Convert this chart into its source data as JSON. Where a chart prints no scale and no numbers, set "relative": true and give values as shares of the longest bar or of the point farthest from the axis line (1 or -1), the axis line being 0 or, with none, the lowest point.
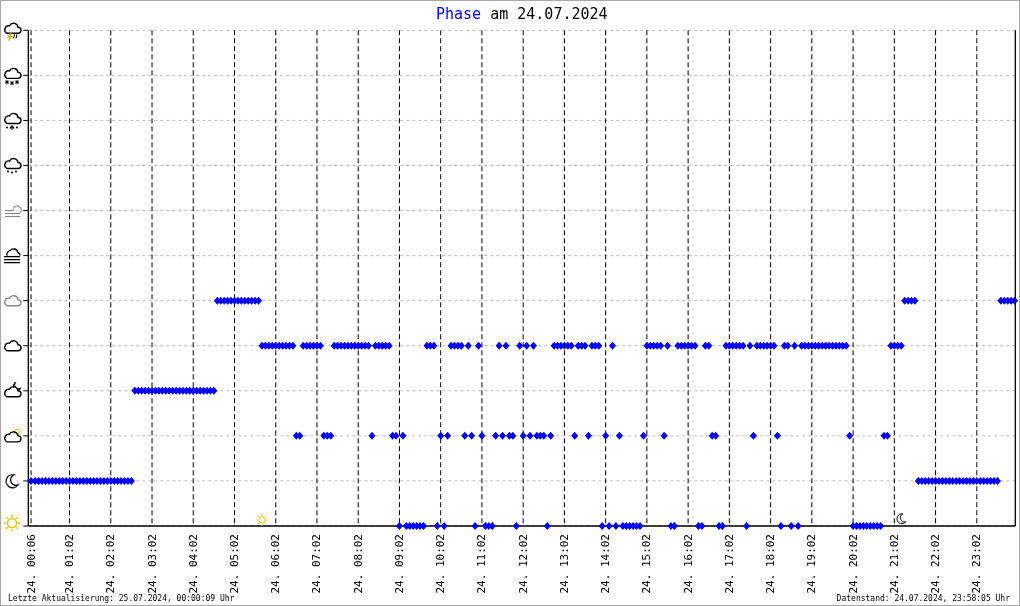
{
  "chart_data": {
    "type": "scatter",
    "title": "Phase am 24.07.2024",
    "relative": true,
    "color": "#0000ff",
    "marker": "diamond",
    "grid": true,
    "xlim": [
      "2024-07-24T00:02",
      "2024-07-24T23:58"
    ],
    "xticks": [
      {
        "value": "2024-07-24T00:06",
        "label": "24. 00:06"
      },
      {
        "value": "2024-07-24T01:02",
        "label": "24. 01:02"
      },
      {
        "value": "2024-07-24T02:02",
        "label": "24. 02:02"
      },
      {
        "value": "2024-07-24T03:02",
        "label": "24. 03:02"
      },
      {
        "value": "2024-07-24T04:02",
        "label": "24. 04:02"
      },
      {
        "value": "2024-07-24T05:02",
        "label": "24. 05:02"
      },
      {
        "value": "2024-07-24T06:02",
        "label": "24. 06:02"
      },
      {
        "value": "2024-07-24T07:02",
        "label": "24. 07:02"
      },
      {
        "value": "2024-07-24T08:02",
        "label": "24. 08:02"
      },
      {
        "value": "2024-07-24T09:02",
        "label": "24. 09:02"
      },
      {
        "value": "2024-07-24T10:02",
        "label": "24. 10:02"
      },
      {
        "value": "2024-07-24T11:02",
        "label": "24. 11:02"
      },
      {
        "value": "2024-07-24T12:02",
        "label": "24. 12:02"
      },
      {
        "value": "2024-07-24T13:02",
        "label": "24. 13:02"
      },
      {
        "value": "2024-07-24T14:02",
        "label": "24. 14:02"
      },
      {
        "value": "2024-07-24T15:02",
        "label": "24. 15:02"
      },
      {
        "value": "2024-07-24T16:02",
        "label": "24. 16:02"
      },
      {
        "value": "2024-07-24T17:02",
        "label": "24. 17:02"
      },
      {
        "value": "2024-07-24T18:02",
        "label": "24. 18:02"
      },
      {
        "value": "2024-07-24T19:02",
        "label": "24. 19:02"
      },
      {
        "value": "2024-07-24T20:02",
        "label": "24. 20:02"
      },
      {
        "value": "2024-07-24T21:02",
        "label": "24. 21:02"
      },
      {
        "value": "2024-07-24T22:02",
        "label": "24. 22:02"
      },
      {
        "value": "2024-07-24T23:02",
        "label": "24. 23:02"
      }
    ],
    "x": [
      "2024-07-24T00:06",
      "2024-07-24T00:12",
      "2024-07-24T00:17",
      "2024-07-24T00:22",
      "2024-07-24T00:27",
      "2024-07-24T00:32",
      "2024-07-24T00:37",
      "2024-07-24T00:42",
      "2024-07-24T00:47",
      "2024-07-24T00:52",
      "2024-07-24T00:57",
      "2024-07-24T01:02",
      "2024-07-24T01:07",
      "2024-07-24T01:12",
      "2024-07-24T01:17",
      "2024-07-24T01:22",
      "2024-07-24T01:27",
      "2024-07-24T01:32",
      "2024-07-24T01:37",
      "2024-07-24T01:42",
      "2024-07-24T01:47",
      "2024-07-24T01:52",
      "2024-07-24T01:57",
      "2024-07-24T02:02",
      "2024-07-24T02:07",
      "2024-07-24T02:12",
      "2024-07-24T02:17",
      "2024-07-24T02:22",
      "2024-07-24T02:27",
      "2024-07-24T02:32",
      "2024-07-24T02:37",
      "2024-07-24T02:42",
      "2024-07-24T02:47",
      "2024-07-24T02:52",
      "2024-07-24T02:57",
      "2024-07-24T03:02",
      "2024-07-24T03:07",
      "2024-07-24T03:12",
      "2024-07-24T03:17",
      "2024-07-24T03:22",
      "2024-07-24T03:27",
      "2024-07-24T03:32",
      "2024-07-24T03:37",
      "2024-07-24T03:42",
      "2024-07-24T03:47",
      "2024-07-24T03:52",
      "2024-07-24T03:57",
      "2024-07-24T04:02",
      "2024-07-24T04:07",
      "2024-07-24T04:12",
      "2024-07-24T04:17",
      "2024-07-24T04:22",
      "2024-07-24T04:27",
      "2024-07-24T04:32",
      "2024-07-24T04:37",
      "2024-07-24T04:42",
      "2024-07-24T04:47",
      "2024-07-24T04:52",
      "2024-07-24T04:57",
      "2024-07-24T05:02",
      "2024-07-24T05:07",
      "2024-07-24T05:12",
      "2024-07-24T05:17",
      "2024-07-24T05:22",
      "2024-07-24T05:27",
      "2024-07-24T05:32",
      "2024-07-24T05:37",
      "2024-07-24T05:42",
      "2024-07-24T05:47",
      "2024-07-24T05:52",
      "2024-07-24T05:57",
      "2024-07-24T06:02",
      "2024-07-24T06:07",
      "2024-07-24T06:12",
      "2024-07-24T06:17",
      "2024-07-24T06:22",
      "2024-07-24T06:27",
      "2024-07-24T06:32",
      "2024-07-24T06:37",
      "2024-07-24T06:42",
      "2024-07-24T06:47",
      "2024-07-24T06:52",
      "2024-07-24T06:57",
      "2024-07-24T07:02",
      "2024-07-24T07:07",
      "2024-07-24T07:12",
      "2024-07-24T07:17",
      "2024-07-24T07:22",
      "2024-07-24T07:27",
      "2024-07-24T07:32",
      "2024-07-24T07:37",
      "2024-07-24T07:42",
      "2024-07-24T07:47",
      "2024-07-24T07:52",
      "2024-07-24T07:57",
      "2024-07-24T08:02",
      "2024-07-24T08:07",
      "2024-07-24T08:12",
      "2024-07-24T08:17",
      "2024-07-24T08:22",
      "2024-07-24T08:27",
      "2024-07-24T08:32",
      "2024-07-24T08:37",
      "2024-07-24T08:42",
      "2024-07-24T08:47",
      "2024-07-24T08:52",
      "2024-07-24T08:57",
      "2024-07-24T09:02",
      "2024-07-24T09:07",
      "2024-07-24T09:12",
      "2024-07-24T09:17",
      "2024-07-24T09:22",
      "2024-07-24T09:27",
      "2024-07-24T09:32",
      "2024-07-24T09:37",
      "2024-07-24T09:42",
      "2024-07-24T09:47",
      "2024-07-24T09:52",
      "2024-07-24T09:57",
      "2024-07-24T10:02",
      "2024-07-24T10:07",
      "2024-07-24T10:12",
      "2024-07-24T10:17",
      "2024-07-24T10:22",
      "2024-07-24T10:27",
      "2024-07-24T10:32",
      "2024-07-24T10:37",
      "2024-07-24T10:42",
      "2024-07-24T10:47",
      "2024-07-24T10:52",
      "2024-07-24T10:57",
      "2024-07-24T11:02",
      "2024-07-24T11:07",
      "2024-07-24T11:12",
      "2024-07-24T11:17",
      "2024-07-24T11:22",
      "2024-07-24T11:27",
      "2024-07-24T11:32",
      "2024-07-24T11:37",
      "2024-07-24T11:42",
      "2024-07-24T11:47",
      "2024-07-24T11:52",
      "2024-07-24T11:57",
      "2024-07-24T12:02",
      "2024-07-24T12:07",
      "2024-07-24T12:12",
      "2024-07-24T12:17",
      "2024-07-24T12:22",
      "2024-07-24T12:27",
      "2024-07-24T12:32",
      "2024-07-24T12:37",
      "2024-07-24T12:42",
      "2024-07-24T12:47",
      "2024-07-24T12:52",
      "2024-07-24T12:57",
      "2024-07-24T13:02",
      "2024-07-24T13:07",
      "2024-07-24T13:12",
      "2024-07-24T13:17",
      "2024-07-24T13:22",
      "2024-07-24T13:27",
      "2024-07-24T13:32",
      "2024-07-24T13:37",
      "2024-07-24T13:42",
      "2024-07-24T13:47",
      "2024-07-24T13:52",
      "2024-07-24T13:57",
      "2024-07-24T14:02",
      "2024-07-24T14:07",
      "2024-07-24T14:12",
      "2024-07-24T14:17",
      "2024-07-24T14:22",
      "2024-07-24T14:27",
      "2024-07-24T14:32",
      "2024-07-24T14:37",
      "2024-07-24T14:42",
      "2024-07-24T14:47",
      "2024-07-24T14:52",
      "2024-07-24T14:57",
      "2024-07-24T15:02",
      "2024-07-24T15:07",
      "2024-07-24T15:12",
      "2024-07-24T15:17",
      "2024-07-24T15:22",
      "2024-07-24T15:27",
      "2024-07-24T15:32",
      "2024-07-24T15:37",
      "2024-07-24T15:42",
      "2024-07-24T15:47",
      "2024-07-24T15:52",
      "2024-07-24T15:57",
      "2024-07-24T16:02",
      "2024-07-24T16:07",
      "2024-07-24T16:12",
      "2024-07-24T16:17",
      "2024-07-24T16:22",
      "2024-07-24T16:27",
      "2024-07-24T16:32",
      "2024-07-24T16:37",
      "2024-07-24T16:42",
      "2024-07-24T16:47",
      "2024-07-24T16:52",
      "2024-07-24T16:57",
      "2024-07-24T17:02",
      "2024-07-24T17:07",
      "2024-07-24T17:12",
      "2024-07-24T17:17",
      "2024-07-24T17:22",
      "2024-07-24T17:27",
      "2024-07-24T17:32",
      "2024-07-24T17:37",
      "2024-07-24T17:42",
      "2024-07-24T17:47",
      "2024-07-24T17:52",
      "2024-07-24T17:57",
      "2024-07-24T18:02",
      "2024-07-24T18:07",
      "2024-07-24T18:12",
      "2024-07-24T18:17",
      "2024-07-24T18:22",
      "2024-07-24T18:27",
      "2024-07-24T18:32",
      "2024-07-24T18:37",
      "2024-07-24T18:42",
      "2024-07-24T18:47",
      "2024-07-24T18:52",
      "2024-07-24T18:57",
      "2024-07-24T19:02",
      "2024-07-24T19:07",
      "2024-07-24T19:12",
      "2024-07-24T19:17",
      "2024-07-24T19:22",
      "2024-07-24T19:27",
      "2024-07-24T19:32",
      "2024-07-24T19:37",
      "2024-07-24T19:42",
      "2024-07-24T19:47",
      "2024-07-24T19:52",
      "2024-07-24T19:57",
      "2024-07-24T20:02",
      "2024-07-24T20:07",
      "2024-07-24T20:12",
      "2024-07-24T20:17",
      "2024-07-24T20:22",
      "2024-07-24T20:27",
      "2024-07-24T20:32",
      "2024-07-24T20:37",
      "2024-07-24T20:42",
      "2024-07-24T20:47",
      "2024-07-24T20:52",
      "2024-07-24T20:57",
      "2024-07-24T21:02",
      "2024-07-24T21:07",
      "2024-07-24T21:12",
      "2024-07-24T21:17",
      "2024-07-24T21:22",
      "2024-07-24T21:27",
      "2024-07-24T21:32",
      "2024-07-24T21:37",
      "2024-07-24T21:42",
      "2024-07-24T21:47",
      "2024-07-24T21:52",
      "2024-07-24T21:57",
      "2024-07-24T22:02",
      "2024-07-24T22:07",
      "2024-07-24T22:12",
      "2024-07-24T22:17",
      "2024-07-24T22:22",
      "2024-07-24T22:27",
      "2024-07-24T22:32",
      "2024-07-24T22:37",
      "2024-07-24T22:42",
      "2024-07-24T22:47",
      "2024-07-24T22:52",
      "2024-07-24T22:57",
      "2024-07-24T23:02",
      "2024-07-24T23:07",
      "2024-07-24T23:12",
      "2024-07-24T23:17",
      "2024-07-24T23:22",
      "2024-07-24T23:27",
      "2024-07-24T23:32",
      "2024-07-24T23:37",
      "2024-07-24T23:42",
      "2024-07-24T23:47",
      "2024-07-24T23:52",
      "2024-07-24T23:57"
    ],
    "values": [
      0.2,
      0.2,
      0.2,
      0.2,
      0.2,
      0.2,
      0.2,
      0.2,
      0.2,
      0.2,
      0.2,
      0.2,
      0.2,
      0.2,
      0.2,
      0.2,
      0.2,
      0.2,
      0.2,
      0.2,
      0.2,
      0.2,
      0.2,
      0.2,
      0.2,
      0.2,
      0.2,
      0.2,
      0.2,
      0.2,
      0.6,
      0.6,
      0.6,
      0.6,
      0.6,
      0.6,
      0.6,
      0.6,
      0.6,
      0.6,
      0.6,
      0.6,
      0.6,
      0.6,
      0.6,
      0.6,
      0.6,
      0.6,
      0.6,
      0.6,
      0.6,
      0.6,
      0.6,
      0.6,
      1,
      1,
      1,
      1,
      1,
      1,
      1,
      1,
      1,
      1,
      1,
      1,
      1,
      0.8,
      0.8,
      0.8,
      0.8,
      0.8,
      0.8,
      0.8,
      0.8,
      0.8,
      0.8,
      0.4,
      0.4,
      0.8,
      0.8,
      0.8,
      0.8,
      0.8,
      0.8,
      0.4,
      0.4,
      0.4,
      0.8,
      0.8,
      0.8,
      0.8,
      0.8,
      0.8,
      0.8,
      0.8,
      0.8,
      0.8,
      0.8,
      0.4,
      0.8,
      0.8,
      0.8,
      0.8,
      0.8,
      0.4,
      0.4,
      0,
      0.4,
      0,
      0,
      0,
      0,
      0,
      0,
      0.8,
      0.8,
      0.8,
      0,
      0.4,
      0,
      0.4,
      0.8,
      0.8,
      0.8,
      0.8,
      0.4,
      0.8,
      0.4,
      0,
      0.8,
      0.4,
      0,
      0,
      0,
      0.4,
      0.8,
      0.4,
      0.8,
      0.4,
      0.4,
      0,
      0.8,
      0.4,
      0.8,
      0.4,
      0.8,
      0.4,
      0.4,
      0.4,
      0,
      0.4,
      0.8,
      0.8,
      0.8,
      0.8,
      0.8,
      0.8,
      0.4,
      0.8,
      0.8,
      0.8,
      0.4,
      0.8,
      0.8,
      0.8,
      0,
      0.4,
      0,
      0.8,
      0,
      0.4,
      0,
      0,
      0,
      0,
      0,
      0,
      0.4,
      0.8,
      0.8,
      0.8,
      0.8,
      0.8,
      0.4,
      0.8,
      0,
      0,
      0.8,
      0.8,
      0.8,
      0.8,
      0.8,
      0.8,
      0,
      0,
      0.8,
      0.8,
      0.4,
      0.4,
      0,
      0,
      0.8,
      0.8,
      0.8,
      0.8,
      0.8,
      0.8,
      0,
      0.8,
      0.4,
      0.8,
      0.8,
      0.8,
      0.8,
      0.8,
      0.8,
      0.4,
      0,
      0.8,
      0.8,
      0,
      0.8,
      0,
      0.8,
      0.8,
      0.8,
      0.8,
      0.8,
      0.8,
      0.8,
      0.8,
      0.8,
      0.8,
      0.8,
      0.8,
      0.8,
      0.8,
      0.4,
      0,
      0,
      0,
      0,
      0,
      0,
      0,
      0,
      0,
      0.4,
      0.4,
      0.8,
      0.8,
      0.8,
      0.8,
      1,
      1,
      1,
      1,
      0.2,
      0.2,
      0.2,
      0.2,
      0.2,
      0.2,
      0.2,
      0.2,
      0.2,
      0.2,
      0.2,
      0.2,
      0.2,
      0.2,
      0.2,
      0.2,
      0.2,
      0.2,
      0.2,
      0.2,
      0.2,
      0.2,
      0.2,
      0.2,
      1,
      1,
      1,
      1,
      1
    ],
    "annotations": [
      "Letzte Aktualisierung: 25.07.2024, 00:00:09 Uhr",
      "Datenstand: 24.07.2024, 23:58:05 Uhr"
    ]
  }
}
